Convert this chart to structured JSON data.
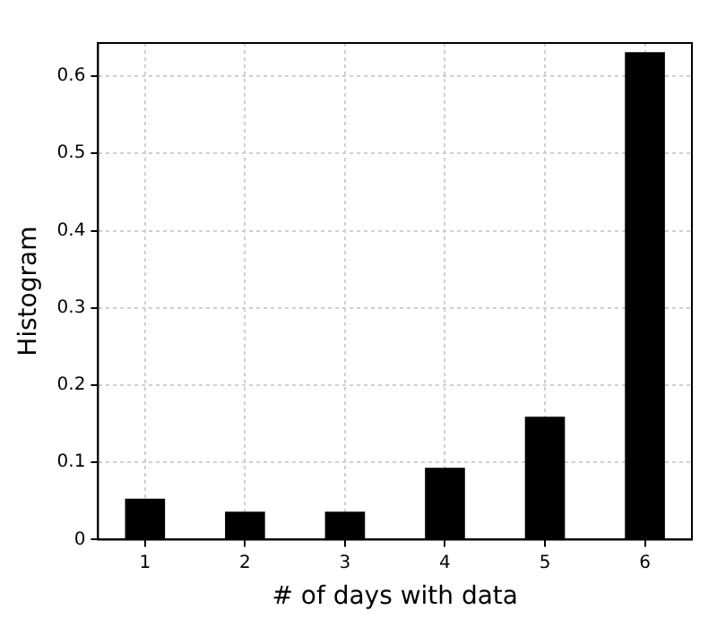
{
  "chart_data": {
    "type": "bar",
    "xlabel": "# of days with data",
    "ylabel": "Histogram",
    "x": [
      1,
      2,
      3,
      4,
      5,
      6
    ],
    "values": [
      0.053,
      0.036,
      0.036,
      0.093,
      0.159,
      0.631
    ],
    "color": "#000000",
    "xlim": [
      0.53,
      6.47
    ],
    "xticks": [
      1,
      2,
      3,
      4,
      5,
      6
    ],
    "ylim": [
      0,
      0.643
    ],
    "yticks": [
      0,
      0.1,
      0.2,
      0.3,
      0.4,
      0.5,
      0.6
    ],
    "grid": true,
    "legend": false
  }
}
